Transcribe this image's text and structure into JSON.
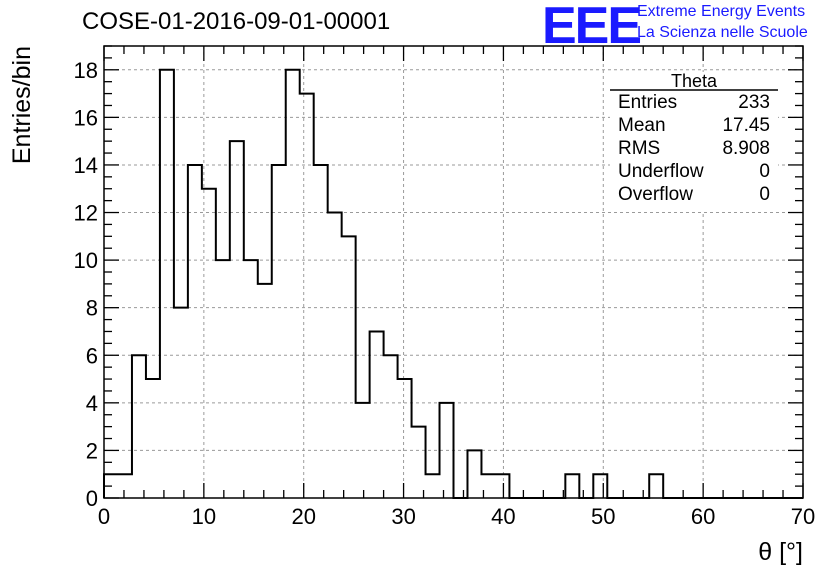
{
  "title": "COSE-01-2016-09-01-00001",
  "logo": {
    "mark": "EEE",
    "line1": "Extreme Energy Events",
    "line2": "La Scienza nelle Scuole",
    "color": "#1a1aff"
  },
  "stats_box": {
    "name": "Theta",
    "rows": [
      {
        "label": "Entries",
        "value": "233"
      },
      {
        "label": "Mean",
        "value": "17.45"
      },
      {
        "label": "RMS",
        "value": "8.908"
      },
      {
        "label": "Underflow",
        "value": "0"
      },
      {
        "label": "Overflow",
        "value": "0"
      }
    ]
  },
  "chart_data": {
    "type": "bar",
    "style": "step-histogram",
    "xlabel": "θ [°]",
    "ylabel": "Entries/bin",
    "xlim": [
      0,
      70
    ],
    "ylim": [
      0,
      19
    ],
    "x_ticks": [
      0,
      10,
      20,
      30,
      40,
      50,
      60,
      70
    ],
    "y_ticks": [
      0,
      2,
      4,
      6,
      8,
      10,
      12,
      14,
      16,
      18
    ],
    "grid": true,
    "bin_width": 1.4,
    "bin_start": 0,
    "values": [
      1,
      1,
      6,
      5,
      18,
      8,
      14,
      13,
      10,
      15,
      10,
      9,
      14,
      18,
      17,
      14,
      12,
      11,
      4,
      7,
      6,
      5,
      3,
      1,
      4,
      0,
      2,
      1,
      1,
      0,
      0,
      0,
      0,
      1,
      0,
      1,
      0,
      0,
      0,
      1,
      0,
      0,
      0,
      0,
      0,
      0,
      0,
      0,
      0,
      0
    ]
  }
}
